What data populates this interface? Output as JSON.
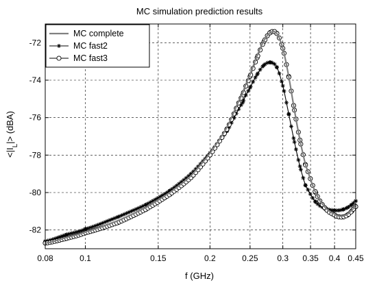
{
  "chart_data": {
    "type": "line",
    "title": "MC simulation prediction results",
    "xlabel": "f (GHz)",
    "ylabel": "<|I_L|> (dBA)",
    "x_scale": "log",
    "xlim": [
      0.08,
      0.45
    ],
    "ylim": [
      -83,
      -71
    ],
    "grid": true,
    "grid_style": "dashed",
    "legend_position": "top-left",
    "x_ticks": [
      0.08,
      0.1,
      0.15,
      0.2,
      0.25,
      0.3,
      0.35,
      0.4,
      0.45
    ],
    "x_tick_labels": [
      "0.08",
      "0.1",
      "0.15",
      "0.2",
      "0.25",
      "0.3",
      "0.35",
      "0.4",
      "0.45"
    ],
    "y_ticks": [
      -82,
      -80,
      -78,
      -76,
      -74,
      -72
    ],
    "y_tick_labels": [
      "-82",
      "-80",
      "-78",
      "-76",
      "-74",
      "-72"
    ],
    "x": [
      0.08,
      0.09,
      0.1,
      0.12,
      0.14,
      0.16,
      0.18,
      0.2,
      0.22,
      0.24,
      0.25,
      0.26,
      0.27,
      0.28,
      0.29,
      0.3,
      0.31,
      0.32,
      0.33,
      0.34,
      0.36,
      0.38,
      0.4,
      0.41,
      0.42,
      0.43,
      0.44,
      0.45
    ],
    "series": [
      {
        "name": "MC complete",
        "marker": "none",
        "color": "#808080",
        "values": [
          -82.7,
          -82.4,
          -82.1,
          -81.5,
          -80.8,
          -80.0,
          -79.1,
          -77.9,
          -76.5,
          -74.7,
          -73.7,
          -72.7,
          -71.9,
          -71.45,
          -71.5,
          -72.3,
          -73.8,
          -75.6,
          -77.2,
          -78.5,
          -80.0,
          -80.8,
          -81.15,
          -81.25,
          -81.25,
          -81.15,
          -80.95,
          -80.7
        ]
      },
      {
        "name": "MC fast2",
        "marker": "star",
        "color": "#000000",
        "values": [
          -82.6,
          -82.25,
          -81.95,
          -81.3,
          -80.65,
          -79.9,
          -79.0,
          -77.9,
          -76.7,
          -75.2,
          -74.4,
          -73.7,
          -73.2,
          -73.05,
          -73.3,
          -74.3,
          -75.8,
          -77.3,
          -78.6,
          -79.6,
          -80.5,
          -80.85,
          -80.95,
          -80.95,
          -80.9,
          -80.8,
          -80.65,
          -80.45
        ]
      },
      {
        "name": "MC fast3",
        "marker": "circle",
        "color": "#000000",
        "values": [
          -82.7,
          -82.45,
          -82.15,
          -81.6,
          -80.9,
          -80.1,
          -79.2,
          -78.0,
          -76.6,
          -74.8,
          -73.8,
          -72.8,
          -71.95,
          -71.45,
          -71.5,
          -72.3,
          -73.8,
          -75.6,
          -77.2,
          -78.5,
          -80.0,
          -80.85,
          -81.2,
          -81.3,
          -81.3,
          -81.2,
          -81.0,
          -80.75
        ]
      }
    ]
  }
}
